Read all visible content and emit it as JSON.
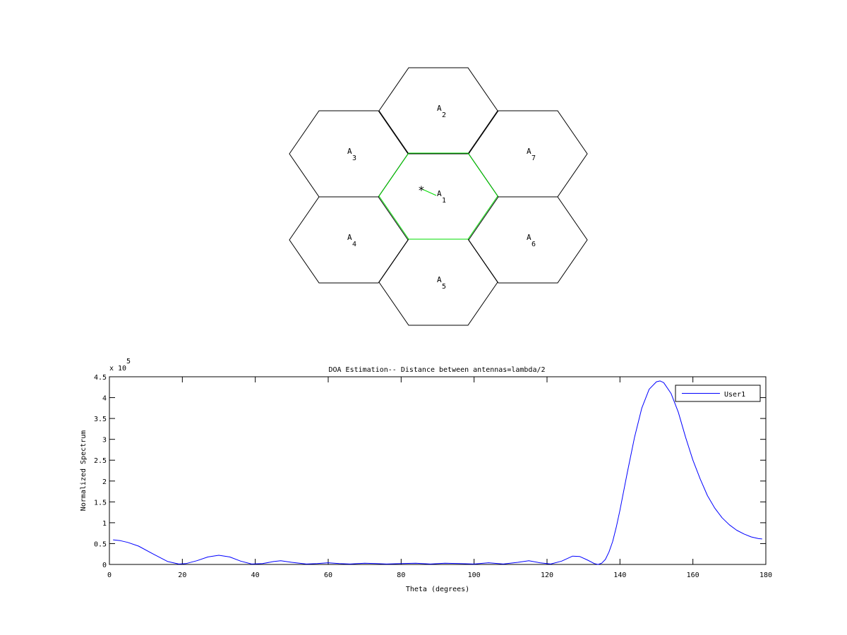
{
  "hex_layout": {
    "cells": [
      {
        "id": "A_1",
        "label": "A",
        "sub": "1",
        "serving": true
      },
      {
        "id": "A_2",
        "label": "A",
        "sub": "2",
        "serving": false
      },
      {
        "id": "A_3",
        "label": "A",
        "sub": "3",
        "serving": false
      },
      {
        "id": "A_4",
        "label": "A",
        "sub": "4",
        "serving": false
      },
      {
        "id": "A_5",
        "label": "A",
        "sub": "5",
        "serving": false
      },
      {
        "id": "A_6",
        "label": "A",
        "sub": "6",
        "serving": false
      },
      {
        "id": "A_7",
        "label": "A",
        "sub": "7",
        "serving": false
      }
    ],
    "user_marker": "*",
    "colors": {
      "cell": "#000000",
      "serving": "#00dd00"
    }
  },
  "chart_data": {
    "type": "line",
    "title": "DOA Estimation-- Distance between antennas=lambda/2",
    "xlabel": "Theta (degrees)",
    "ylabel": "Normalized Spectrum",
    "y_multiplier_label": "x 10",
    "y_multiplier_exponent": "5",
    "xlim": [
      0,
      180
    ],
    "ylim": [
      0,
      4.5
    ],
    "x_ticks": [
      "0",
      "20",
      "40",
      "60",
      "80",
      "100",
      "120",
      "140",
      "160",
      "180"
    ],
    "y_ticks": [
      "0",
      "0.5",
      "1",
      "1.5",
      "2",
      "2.5",
      "3",
      "3.5",
      "4",
      "4.5"
    ],
    "legend_position": "top-right",
    "series": [
      {
        "name": "User1",
        "color": "#0000ff",
        "x": [
          1,
          3,
          5,
          8,
          12,
          16,
          19,
          21,
          24,
          27,
          30,
          33,
          36,
          39,
          42,
          45,
          47,
          50,
          54,
          57,
          60,
          63,
          66,
          70,
          73,
          76,
          80,
          84,
          88,
          92,
          96,
          100,
          104,
          108,
          112,
          115,
          118,
          121,
          124,
          127,
          129,
          131,
          133,
          134,
          135,
          136,
          137,
          138,
          139,
          140,
          142,
          144,
          146,
          148,
          150,
          151,
          152,
          154,
          156,
          158,
          160,
          162,
          164,
          166,
          168,
          170,
          172,
          174,
          176,
          178,
          179
        ],
        "y": [
          0.59,
          0.57,
          0.53,
          0.44,
          0.25,
          0.07,
          0.01,
          0.02,
          0.09,
          0.18,
          0.22,
          0.18,
          0.08,
          0.01,
          0.02,
          0.07,
          0.09,
          0.05,
          0.01,
          0.02,
          0.04,
          0.02,
          0.01,
          0.03,
          0.02,
          0.01,
          0.02,
          0.03,
          0.01,
          0.03,
          0.02,
          0.01,
          0.04,
          0.01,
          0.05,
          0.09,
          0.04,
          0.01,
          0.08,
          0.2,
          0.19,
          0.11,
          0.02,
          0.0,
          0.03,
          0.12,
          0.3,
          0.55,
          0.9,
          1.3,
          2.2,
          3.05,
          3.75,
          4.2,
          4.38,
          4.4,
          4.36,
          4.1,
          3.65,
          3.05,
          2.5,
          2.05,
          1.65,
          1.35,
          1.12,
          0.95,
          0.82,
          0.73,
          0.66,
          0.62,
          0.61
        ]
      }
    ]
  }
}
